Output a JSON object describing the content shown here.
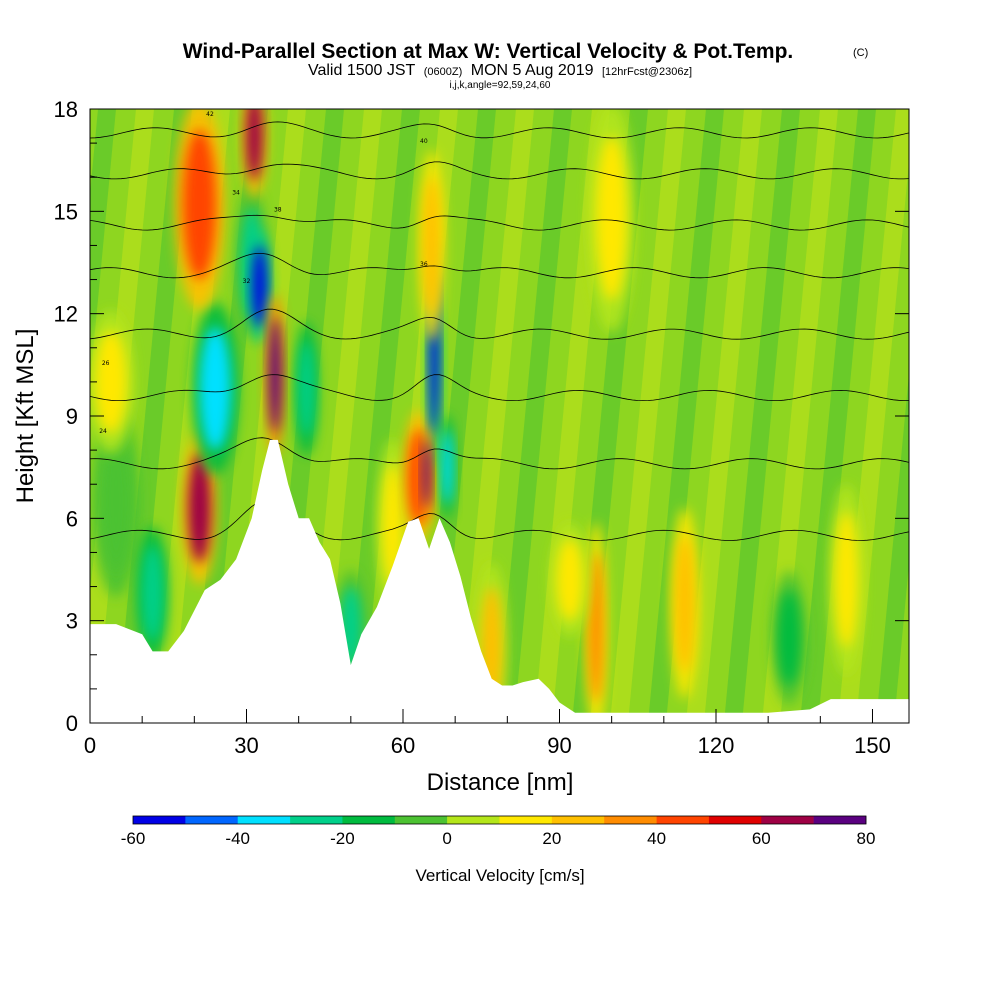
{
  "chart_data": {
    "type": "heatmap",
    "title": "Wind-Parallel Section at Max W: Vertical Velocity & Pot.Temp.",
    "title_mark": "(C)",
    "subtitle_main_a": "Valid 1500 JST",
    "subtitle_small_a": "(0600Z)",
    "subtitle_main_b": "MON 5 Aug 2019",
    "subtitle_small_b": "[12hrFcst@2306z]",
    "subtitle2": "i,j,k,angle=92,59,24,60",
    "xlabel": "Distance [nm]",
    "ylabel": "Height [Kft MSL]",
    "xlim": [
      0,
      157
    ],
    "ylim": [
      0,
      18
    ],
    "x_ticks": [
      "0",
      "30",
      "60",
      "90",
      "120",
      "150"
    ],
    "y_ticks": [
      "0",
      "3",
      "6",
      "9",
      "12",
      "15",
      "18"
    ],
    "x_tick_values": [
      0,
      30,
      60,
      90,
      120,
      150
    ],
    "y_tick_values": [
      0,
      3,
      6,
      9,
      12,
      15,
      18
    ],
    "terrain": {
      "x": [
        0,
        5,
        10,
        12,
        15,
        18,
        22,
        25,
        28,
        31,
        33,
        34.5,
        36,
        38,
        40,
        42,
        44,
        46,
        48,
        50,
        52,
        55,
        58,
        61,
        63,
        65,
        67,
        69,
        71,
        73,
        75,
        77,
        79,
        81,
        83,
        86,
        88,
        90,
        93,
        96,
        100,
        110,
        120,
        130,
        138,
        142,
        150,
        157
      ],
      "y": [
        2.9,
        2.9,
        2.6,
        2.1,
        2.1,
        2.7,
        3.9,
        4.2,
        4.8,
        6.0,
        7.4,
        8.3,
        8.3,
        7.0,
        6.0,
        6.0,
        5.3,
        4.8,
        3.5,
        1.7,
        2.6,
        3.4,
        4.6,
        5.9,
        6.0,
        5.1,
        6.0,
        5.3,
        4.3,
        3.1,
        2.1,
        1.3,
        1.1,
        1.1,
        1.2,
        1.3,
        1.0,
        0.6,
        0.3,
        0.3,
        0.3,
        0.3,
        0.3,
        0.3,
        0.4,
        0.7,
        0.7,
        0.7
      ]
    },
    "cells": [
      {
        "x": 5,
        "y": 6.5,
        "rx": 3,
        "ry": 2.0,
        "w": -10
      },
      {
        "x": 12,
        "y": 3.8,
        "rx": 2,
        "ry": 1.4,
        "w": -25
      },
      {
        "x": 4,
        "y": 10,
        "rx": 3,
        "ry": 1.5,
        "w": 18
      },
      {
        "x": 21,
        "y": 6.3,
        "rx": 2.2,
        "ry": 1.6,
        "w": 62
      },
      {
        "x": 24,
        "y": 9.8,
        "rx": 3,
        "ry": 1.8,
        "w": -38
      },
      {
        "x": 21,
        "y": 15.2,
        "rx": 3.2,
        "ry": 2.2,
        "w": 45
      },
      {
        "x": 31,
        "y": 13.5,
        "rx": 2.0,
        "ry": 1.6,
        "w": -22
      },
      {
        "x": 32.5,
        "y": 12.8,
        "rx": 1.4,
        "ry": 1.2,
        "w": -55
      },
      {
        "x": 31.5,
        "y": 17.2,
        "rx": 1.6,
        "ry": 1.3,
        "w": 65
      },
      {
        "x": 35.5,
        "y": 10.2,
        "rx": 1.2,
        "ry": 1.7,
        "w": 72
      },
      {
        "x": 41.5,
        "y": 9.8,
        "rx": 1.5,
        "ry": 1.4,
        "w": -25
      },
      {
        "x": 50,
        "y": 2.8,
        "rx": 2.0,
        "ry": 1.2,
        "w": -22
      },
      {
        "x": 58,
        "y": 5.8,
        "rx": 2.0,
        "ry": 1.8,
        "w": 18
      },
      {
        "x": 63,
        "y": 7.2,
        "rx": 2.0,
        "ry": 1.4,
        "w": 48
      },
      {
        "x": 66,
        "y": 10.8,
        "rx": 0.9,
        "ry": 2.4,
        "w": -55
      },
      {
        "x": 65.5,
        "y": 14.0,
        "rx": 1.6,
        "ry": 2.0,
        "w": 28
      },
      {
        "x": 64.5,
        "y": 7.3,
        "rx": 0.8,
        "ry": 1.0,
        "w": 72
      },
      {
        "x": 68.5,
        "y": 7.5,
        "rx": 1.0,
        "ry": 1.1,
        "w": -35
      },
      {
        "x": 77,
        "y": 2.2,
        "rx": 2.0,
        "ry": 1.8,
        "w": 22
      },
      {
        "x": 97,
        "y": 2.8,
        "rx": 1.4,
        "ry": 2.2,
        "w": 35
      },
      {
        "x": 92,
        "y": 4.2,
        "rx": 2.5,
        "ry": 1.2,
        "w": 15
      },
      {
        "x": 114,
        "y": 3.5,
        "rx": 1.8,
        "ry": 2.0,
        "w": 25
      },
      {
        "x": 100,
        "y": 14.8,
        "rx": 3.0,
        "ry": 2.4,
        "w": 10
      },
      {
        "x": 134,
        "y": 2.5,
        "rx": 2.2,
        "ry": 1.4,
        "w": -12
      },
      {
        "x": 145,
        "y": 4.2,
        "rx": 2.2,
        "ry": 2.0,
        "w": 10
      }
    ],
    "theta_contours": [
      {
        "label": "24",
        "base": 5.5,
        "lx": 2.5,
        "ly": 8.5,
        "amp": 0.9
      },
      {
        "label": "26",
        "base": 7.6,
        "lx": 3.0,
        "ly": 10.5,
        "amp": 0.8
      },
      {
        "label": "32",
        "base": 9.6,
        "lx": 30,
        "ly": 12.9,
        "amp": 0.7
      },
      {
        "label": "34",
        "base": 11.4,
        "lx": 28,
        "ly": 15.5,
        "amp": 0.6
      },
      {
        "label": "36",
        "base": 13.2,
        "lx": 64,
        "ly": 13.4,
        "amp": 0.5
      },
      {
        "label": "38",
        "base": 14.6,
        "lx": 36,
        "ly": 15.0,
        "amp": 0.4
      },
      {
        "label": "40",
        "base": 16.1,
        "lx": 64,
        "ly": 17.0,
        "amp": 0.3
      },
      {
        "label": "42",
        "base": 17.3,
        "lx": 23,
        "ly": 17.8,
        "amp": 0.2
      }
    ],
    "colorbar": {
      "label": "Vertical Velocity [cm/s]",
      "ticks": [
        "-60",
        "-40",
        "-20",
        "0",
        "20",
        "40",
        "60",
        "80"
      ],
      "bounds": [
        -60,
        80
      ],
      "colors": [
        "#0000e6",
        "#0066ff",
        "#00e0ff",
        "#00d08a",
        "#00bb3f",
        "#4cc232",
        "#b4e61a",
        "#ffe800",
        "#ffc000",
        "#ff8c00",
        "#ff4400",
        "#e00000",
        "#9e0044",
        "#5a0080"
      ]
    }
  }
}
